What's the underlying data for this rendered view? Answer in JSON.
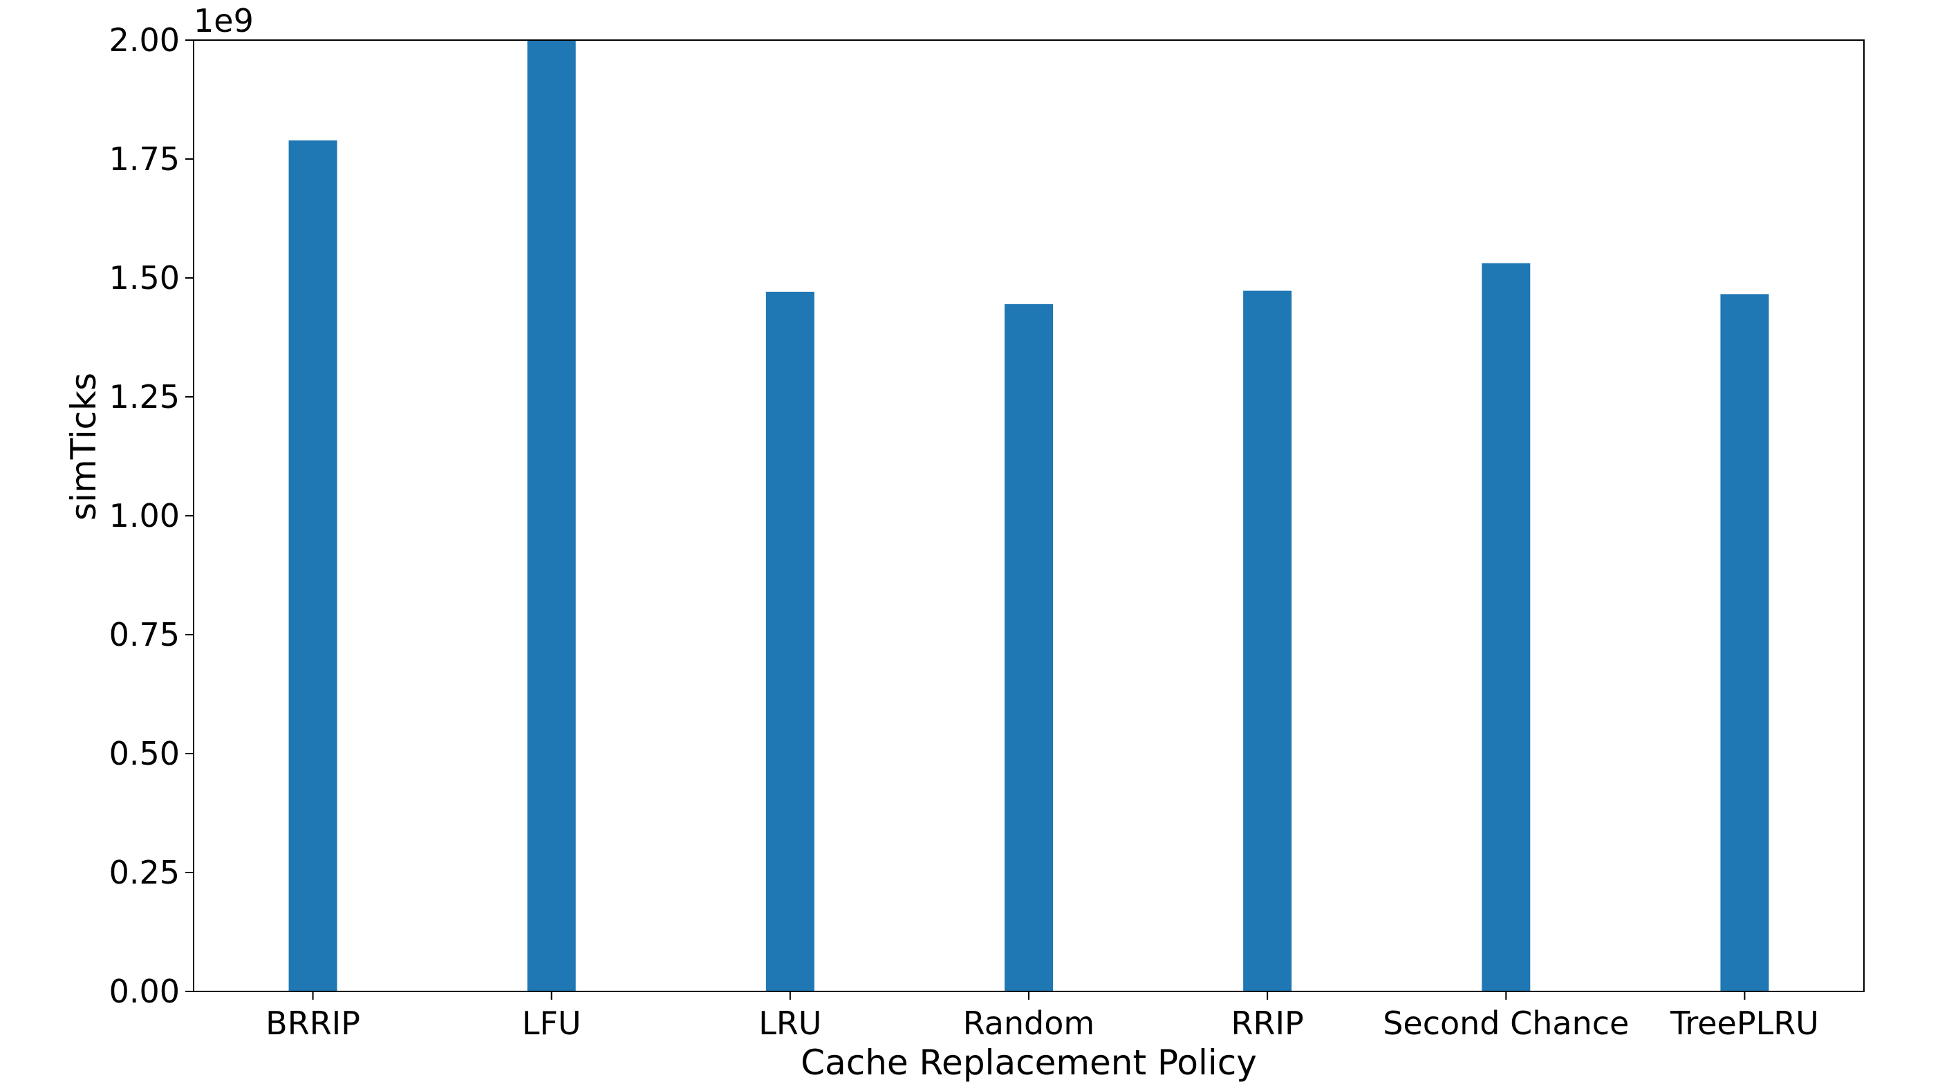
{
  "chart_data": {
    "type": "bar",
    "categories": [
      "BRRIP",
      "LFU",
      "LRU",
      "Random",
      "RRIP",
      "Second Chance",
      "TreePLRU"
    ],
    "values": [
      1789000000,
      2000000000,
      1471000000,
      1445000000,
      1473000000,
      1531000000,
      1466000000
    ],
    "xlabel": "Cache Replacement Policy",
    "ylabel": "simTicks",
    "y_offset_label": "1e9",
    "ylim": [
      0,
      2000000000
    ],
    "yticks": [
      0,
      250000000,
      500000000,
      750000000,
      1000000000,
      1250000000,
      1500000000,
      1750000000,
      2000000000
    ],
    "ytick_labels": [
      "0.00",
      "0.25",
      "0.50",
      "0.75",
      "1.00",
      "1.25",
      "1.50",
      "1.75",
      "2.00"
    ],
    "bar_color": "#1f77b4",
    "grid": false,
    "legend": "none"
  }
}
